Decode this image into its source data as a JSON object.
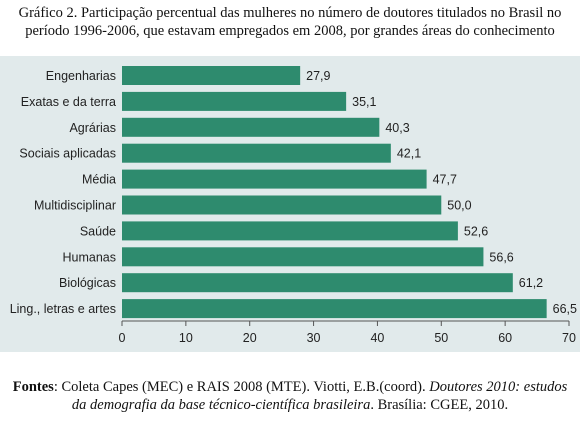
{
  "title": "Gráfico 2. Participação percentual das mulheres no número de doutores titulados no Brasil no período 1996-2006, que estavam empregados em 2008, por grandes áreas do conhecimento",
  "source": {
    "label": "Fontes",
    "text1": ": Coleta Capes (MEC) e RAIS 2008 (MTE). Viotti, E.B.(coord). ",
    "italic": "Doutores 2010: estudos da demografia da base técnico-científica brasileira",
    "text2": ". Brasília: CGEE, 2010."
  },
  "colors": {
    "bar": "#2e8b6e",
    "background": "#e1eaeb",
    "axis": "#555555"
  },
  "chart_data": {
    "type": "bar",
    "orientation": "horizontal",
    "categories": [
      "Engenharias",
      "Exatas e da terra",
      "Agrárias",
      "Sociais aplicadas",
      "Média",
      "Multidisciplinar",
      "Saúde",
      "Humanas",
      "Biológicas",
      "Ling., letras e artes"
    ],
    "values": [
      27.9,
      35.1,
      40.3,
      42.1,
      47.7,
      50.0,
      52.6,
      56.6,
      61.2,
      66.5
    ],
    "value_labels": [
      "27,9",
      "35,1",
      "40,3",
      "42,1",
      "47,7",
      "50,0",
      "52,6",
      "56,6",
      "61,2",
      "66,5"
    ],
    "xlim": [
      0,
      70
    ],
    "xticks": [
      0,
      10,
      20,
      30,
      40,
      50,
      60,
      70
    ],
    "grid": false,
    "legend": "none"
  }
}
